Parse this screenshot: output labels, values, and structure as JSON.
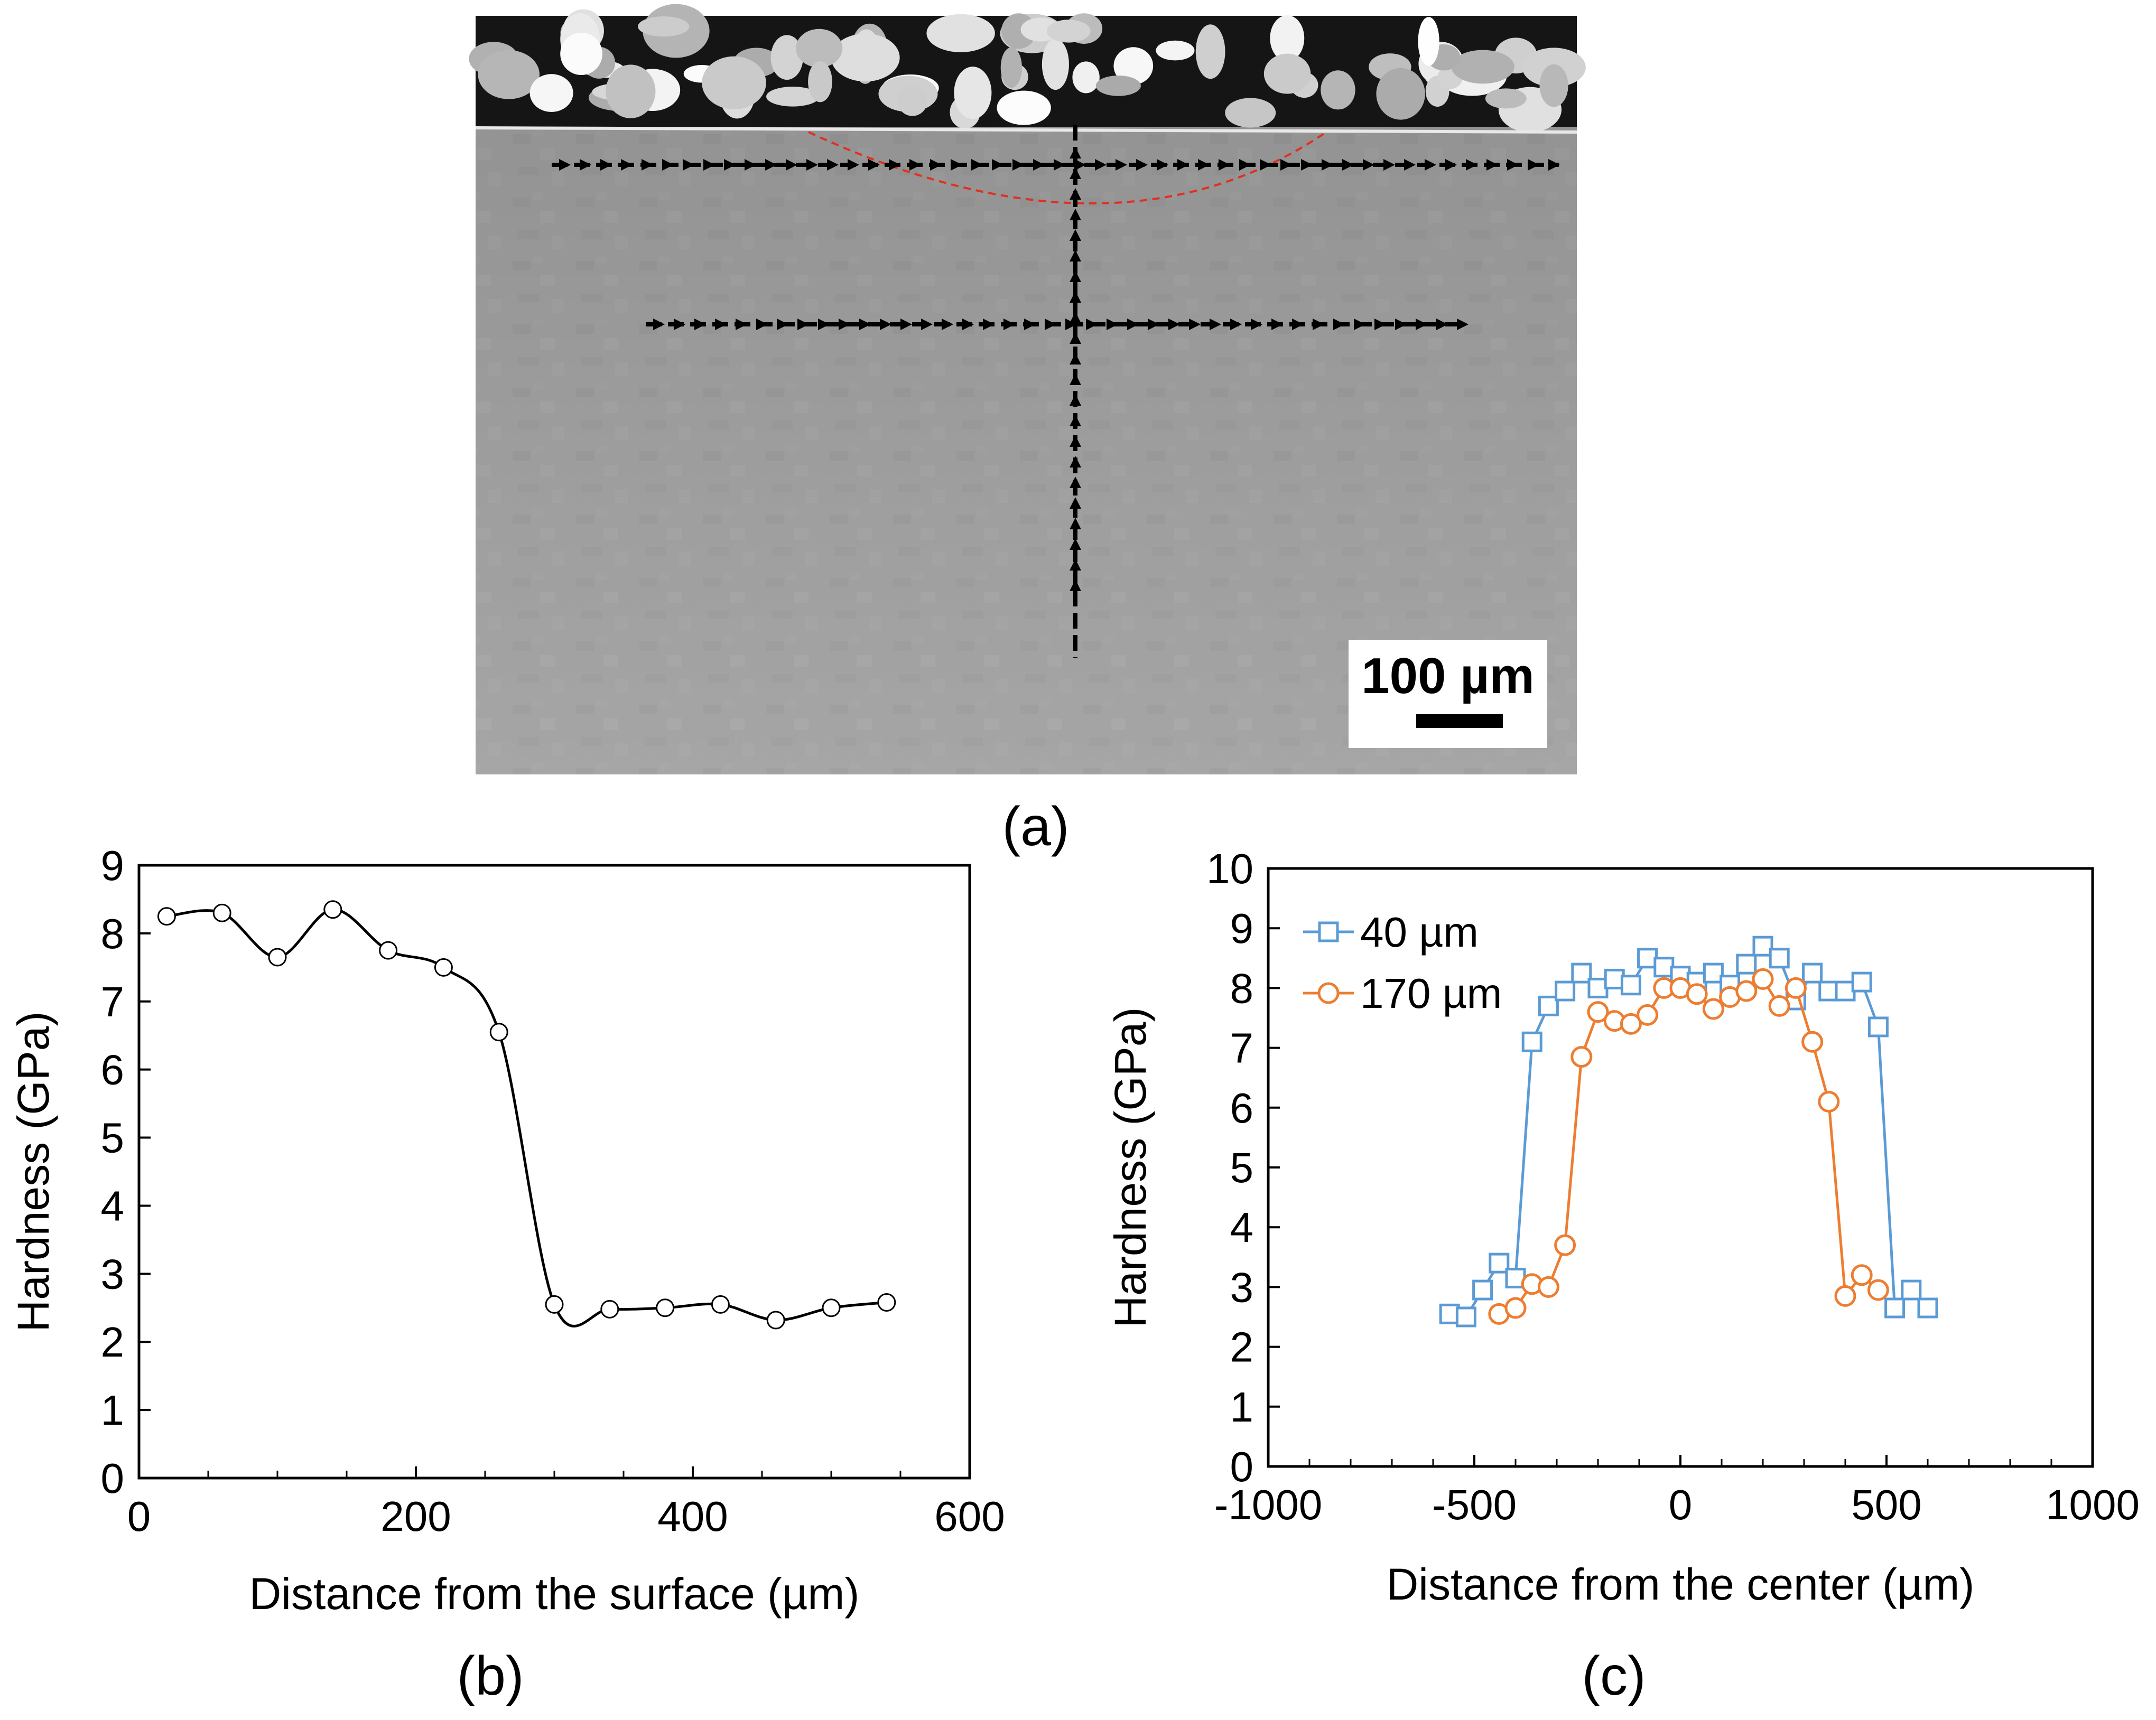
{
  "panels": {
    "a": {
      "label": "(a)",
      "scale_bar": "100 µm"
    },
    "b": {
      "label": "(b)"
    },
    "c": {
      "label": "(c)"
    }
  },
  "colors": {
    "series_b": "#000000",
    "series_40": "#5B9BD5",
    "series_170": "#ED7D31",
    "indent_marks": "#000000",
    "boundary_line": "#E03020"
  },
  "chart_data": [
    {
      "id": "b",
      "type": "line",
      "title": "",
      "xlabel": "Distance from the surface (µm)",
      "ylabel": "Hardness (GPa)",
      "xlim": [
        0,
        600
      ],
      "ylim": [
        0,
        9
      ],
      "xticks": [
        0,
        200,
        400,
        600
      ],
      "yticks": [
        0,
        1,
        2,
        3,
        4,
        5,
        6,
        7,
        8,
        9
      ],
      "legend": null,
      "series": [
        {
          "name": "hardness",
          "marker": "circle",
          "x": [
            20,
            60,
            100,
            140,
            180,
            220,
            260,
            300,
            340,
            380,
            420,
            460,
            500,
            540
          ],
          "y": [
            8.25,
            8.3,
            7.65,
            8.35,
            7.75,
            7.5,
            6.55,
            2.55,
            2.48,
            2.5,
            2.55,
            2.32,
            2.5,
            2.58
          ]
        }
      ]
    },
    {
      "id": "c",
      "type": "line",
      "title": "",
      "xlabel": "Distance from the center (µm)",
      "ylabel": "Hardness (GPa)",
      "xlim": [
        -1000,
        1000
      ],
      "ylim": [
        0,
        10
      ],
      "xticks": [
        -1000,
        -500,
        0,
        500,
        1000
      ],
      "yticks": [
        0,
        1,
        2,
        3,
        4,
        5,
        6,
        7,
        8,
        9,
        10
      ],
      "legend": "top-left",
      "series": [
        {
          "name": "40 µm",
          "marker": "square",
          "x": [
            -560,
            -520,
            -480,
            -440,
            -400,
            -360,
            -320,
            -280,
            -240,
            -200,
            -160,
            -120,
            -80,
            -40,
            0,
            40,
            80,
            120,
            160,
            200,
            240,
            280,
            320,
            360,
            400,
            440,
            480,
            520,
            560,
            600
          ],
          "y": [
            2.55,
            2.5,
            2.95,
            3.4,
            3.15,
            7.1,
            7.7,
            7.95,
            8.25,
            8.0,
            8.15,
            8.05,
            8.5,
            8.35,
            8.2,
            8.1,
            8.25,
            8.05,
            8.4,
            8.7,
            8.5,
            7.8,
            8.25,
            7.95,
            7.95,
            8.1,
            7.35,
            2.65,
            2.95,
            2.65
          ]
        },
        {
          "name": "170 µm",
          "marker": "circle",
          "x": [
            -440,
            -400,
            -360,
            -320,
            -280,
            -240,
            -200,
            -160,
            -120,
            -80,
            -40,
            0,
            40,
            80,
            120,
            160,
            200,
            240,
            280,
            320,
            360,
            400,
            440,
            480
          ],
          "y": [
            2.55,
            2.65,
            3.05,
            3.0,
            3.7,
            6.85,
            7.6,
            7.45,
            7.4,
            7.55,
            8.0,
            8.0,
            7.9,
            7.65,
            7.85,
            7.95,
            8.15,
            7.7,
            8.0,
            7.1,
            6.1,
            2.85,
            3.2,
            2.95
          ]
        }
      ]
    }
  ]
}
